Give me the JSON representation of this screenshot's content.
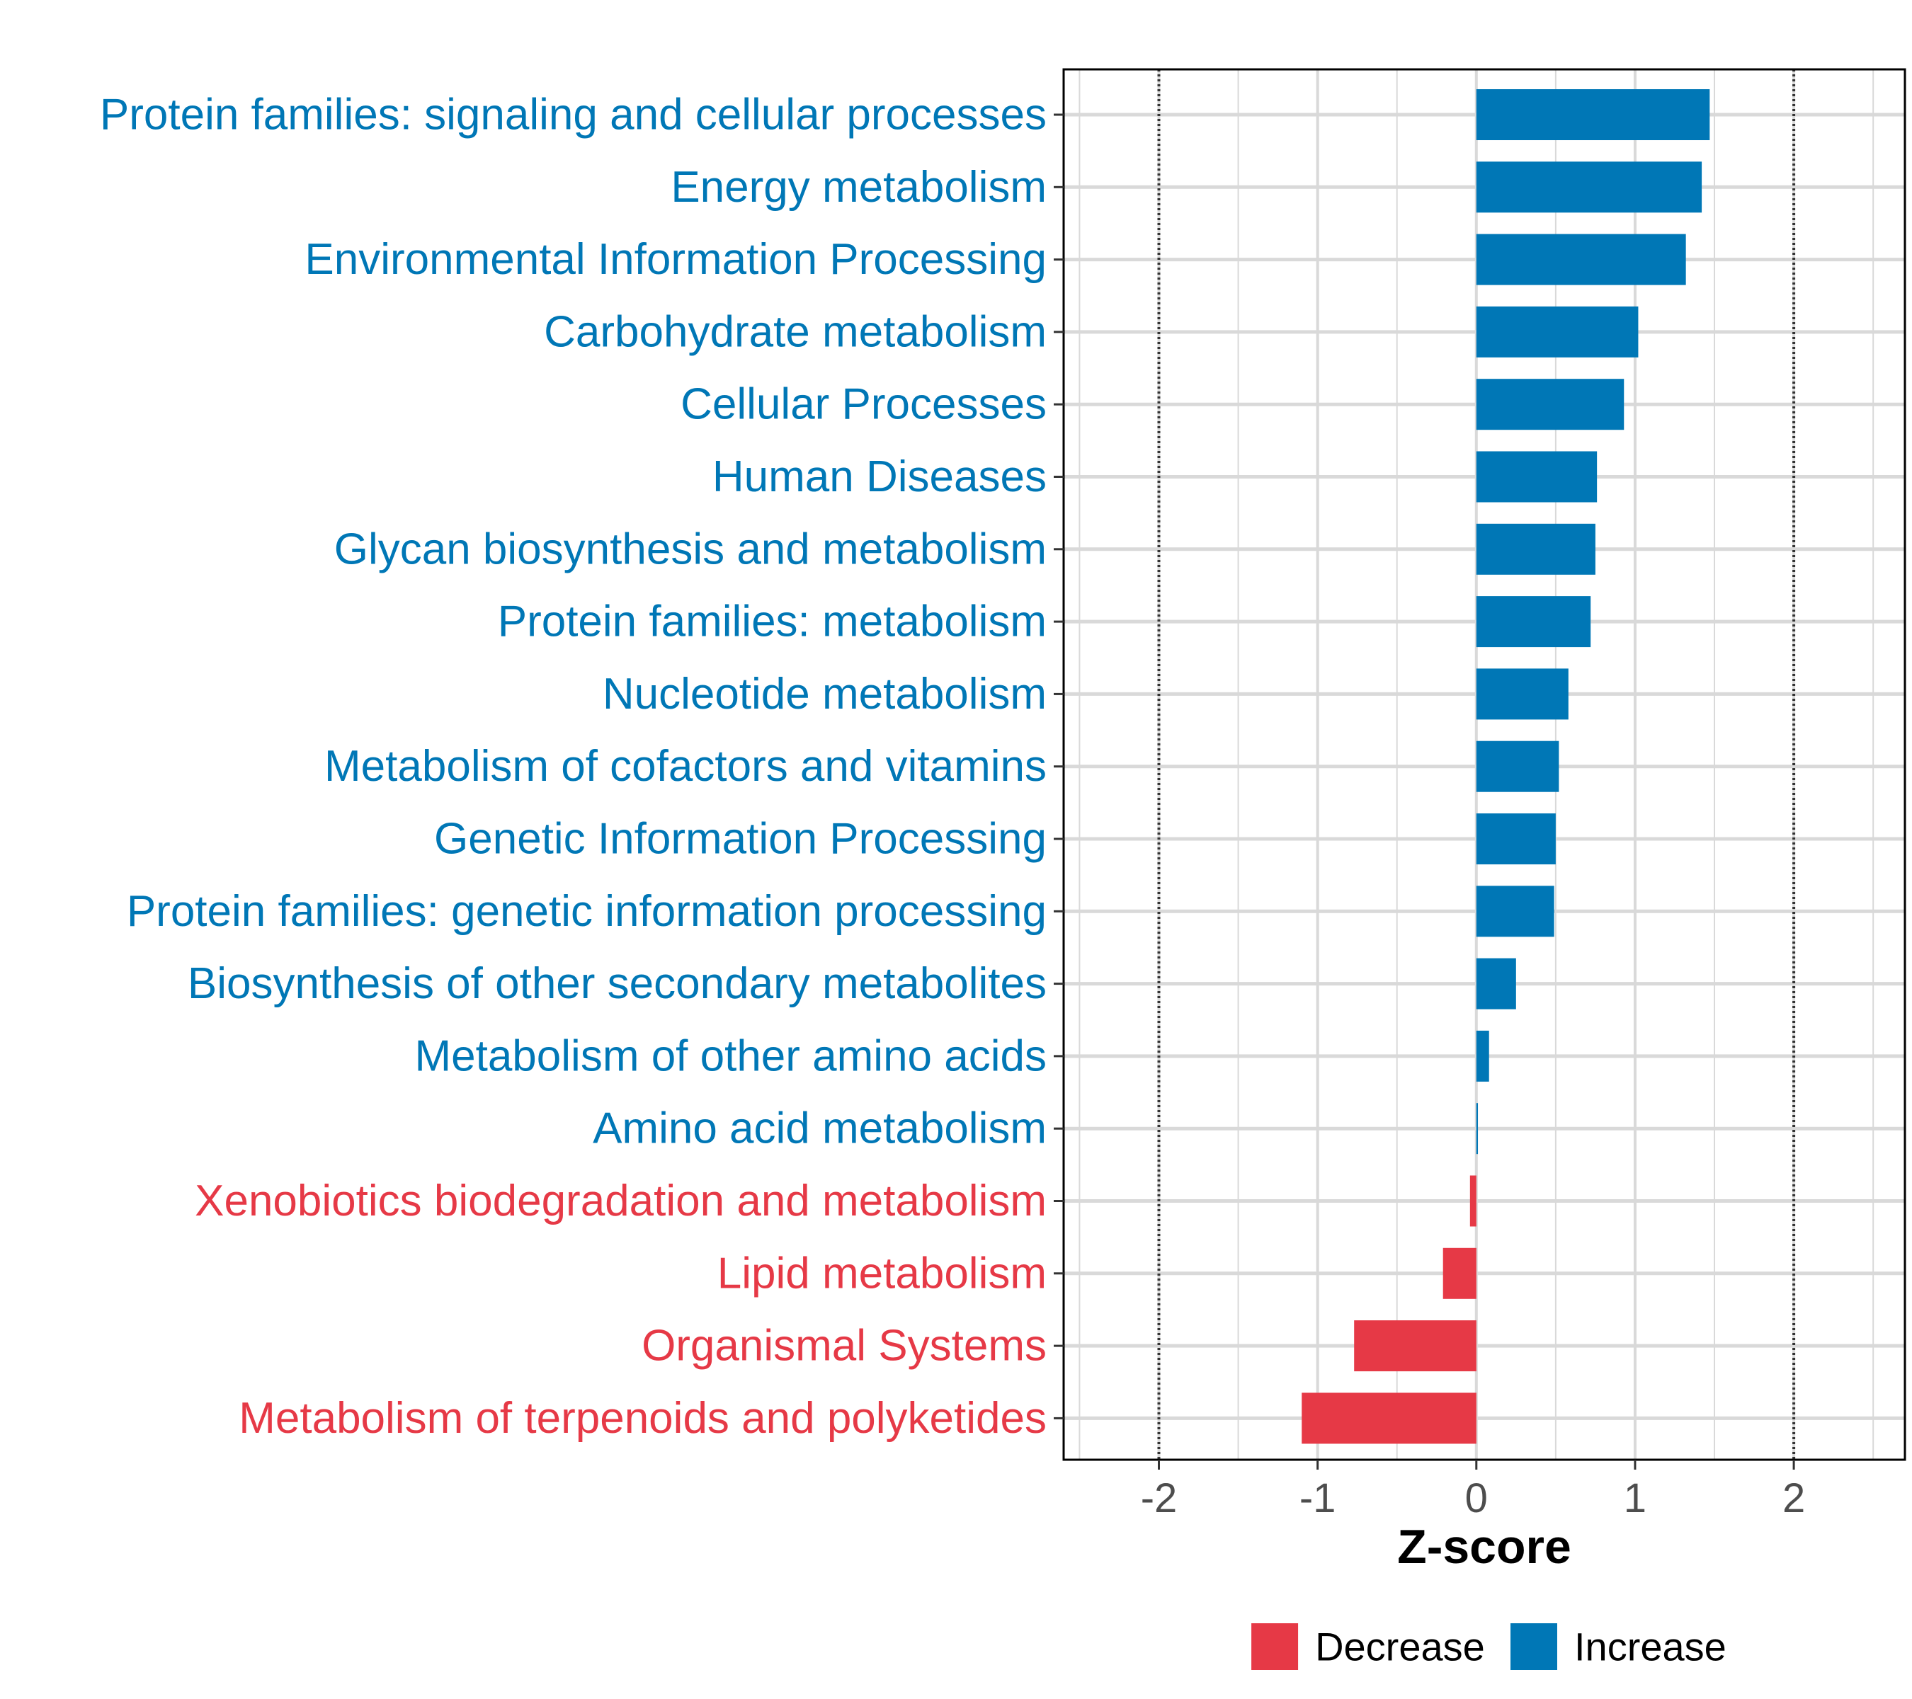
{
  "colors": {
    "increase": "#0077B6",
    "decrease": "#E63946",
    "grid": "#D9D9D9",
    "frame": "#000000",
    "reference_line": "#333333"
  },
  "chart_data": {
    "type": "bar",
    "orientation": "horizontal",
    "title": "",
    "xlabel": "Z-score",
    "ylabel": "",
    "xlim": [
      -2.6,
      2.7
    ],
    "xticks": [
      -2,
      -1,
      0,
      1,
      2
    ],
    "xtick_labels": [
      "-2",
      "-1",
      "0",
      "1",
      "2"
    ],
    "reference_lines": [
      -2,
      2
    ],
    "grid": true,
    "categories": [
      "Protein families: signaling and cellular processes",
      "Energy metabolism",
      "Environmental Information Processing",
      "Carbohydrate metabolism",
      "Cellular Processes",
      "Human Diseases",
      "Glycan biosynthesis and metabolism",
      "Protein families: metabolism",
      "Nucleotide metabolism",
      "Metabolism of cofactors and vitamins",
      "Genetic Information Processing",
      "Protein families: genetic information processing",
      "Biosynthesis of other secondary metabolites",
      "Metabolism of other amino acids",
      "Amino acid metabolism",
      "Xenobiotics biodegradation and metabolism",
      "Lipid metabolism",
      "Organismal Systems",
      "Metabolism of terpenoids and polyketides"
    ],
    "values": [
      1.47,
      1.42,
      1.32,
      1.02,
      0.93,
      0.76,
      0.75,
      0.72,
      0.58,
      0.52,
      0.5,
      0.49,
      0.25,
      0.08,
      0.01,
      -0.04,
      -0.21,
      -0.77,
      -1.1
    ],
    "groups": [
      "Increase",
      "Increase",
      "Increase",
      "Increase",
      "Increase",
      "Increase",
      "Increase",
      "Increase",
      "Increase",
      "Increase",
      "Increase",
      "Increase",
      "Increase",
      "Increase",
      "Increase",
      "Decrease",
      "Decrease",
      "Decrease",
      "Decrease"
    ],
    "legend": {
      "position": "bottom",
      "entries": [
        {
          "label": "Decrease",
          "color": "#E63946"
        },
        {
          "label": "Increase",
          "color": "#0077B6"
        }
      ]
    }
  }
}
